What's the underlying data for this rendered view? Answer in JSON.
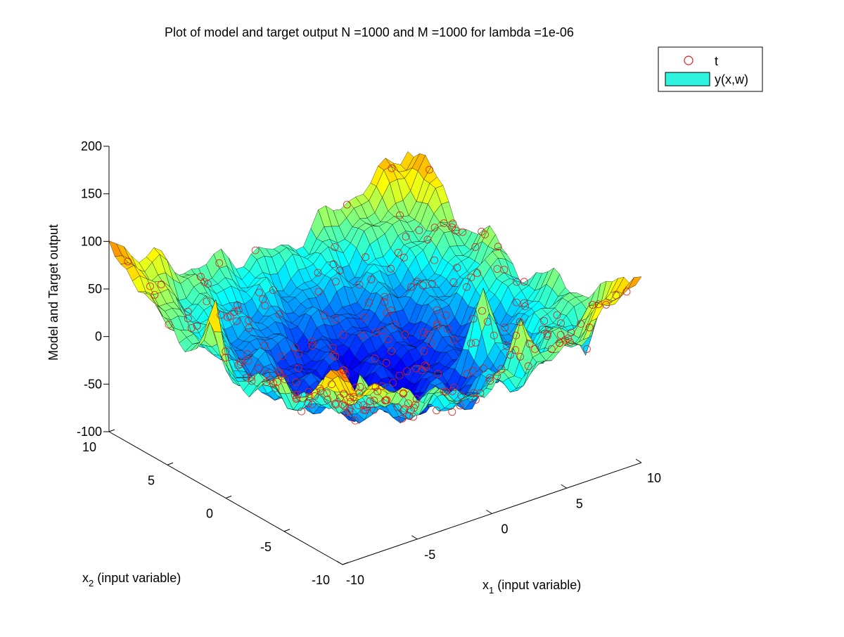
{
  "chart_data": {
    "type": "surface3d",
    "title": "Plot of model and target output N =1000 and M =1000 for lambda =1e-06",
    "zlabel": "Model and Target output",
    "xlabel": {
      "main": "x",
      "sub": "1",
      "rest": " (input variable)"
    },
    "ylabel": {
      "main": "x",
      "sub": "2",
      "rest": " (input variable)"
    },
    "xlim": [
      -10,
      10
    ],
    "ylim": [
      -10,
      10
    ],
    "zlim": [
      -100,
      200
    ],
    "x_ticks": [
      "-10",
      "-5",
      "0",
      "5",
      "10"
    ],
    "y_ticks": [
      "-10",
      "-5",
      "0",
      "5",
      "10"
    ],
    "z_ticks": [
      "-100",
      "-50",
      "0",
      "50",
      "100",
      "150",
      "200"
    ],
    "colormap": "jet",
    "legend": {
      "location": "top-right",
      "entries": [
        {
          "label": "t",
          "marker": "circle",
          "color": "#e31a1c"
        },
        {
          "label": "y(x,w)",
          "marker": "patch",
          "color": "#2ff5e0"
        }
      ]
    },
    "series": [
      {
        "name": "t",
        "kind": "scatter",
        "marker_color": "#e31a1c",
        "n_points": 1000
      },
      {
        "name": "y(x,w)",
        "kind": "surface",
        "edge_color": "#000000"
      }
    ]
  }
}
